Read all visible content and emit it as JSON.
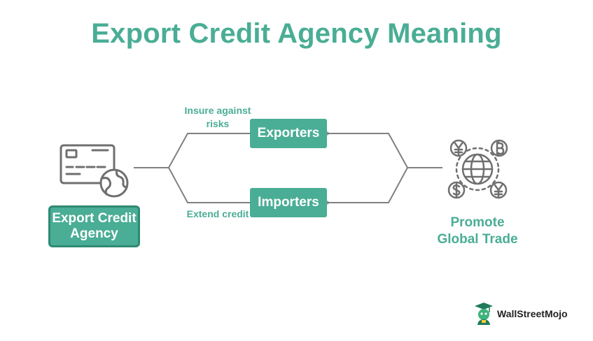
{
  "title": "Export Credit Agency Meaning",
  "agency": {
    "label": "Export Credit Agency"
  },
  "exporters": {
    "label": "Exporters",
    "note": "Insure against risks"
  },
  "importers": {
    "label": "Importers",
    "note": "Extend credit"
  },
  "outcome": {
    "label": "Promote Global Trade"
  },
  "icons": [
    "credit-card-globe-icon",
    "global-currency-icon",
    "wallstreetmojo-logo-icon"
  ],
  "brand": {
    "name": "WallStreetMojo"
  },
  "colors": {
    "accent": "#4aad95",
    "accent_dark": "#2f8a73",
    "line": "#808080",
    "icon": "#6f6f6f"
  }
}
